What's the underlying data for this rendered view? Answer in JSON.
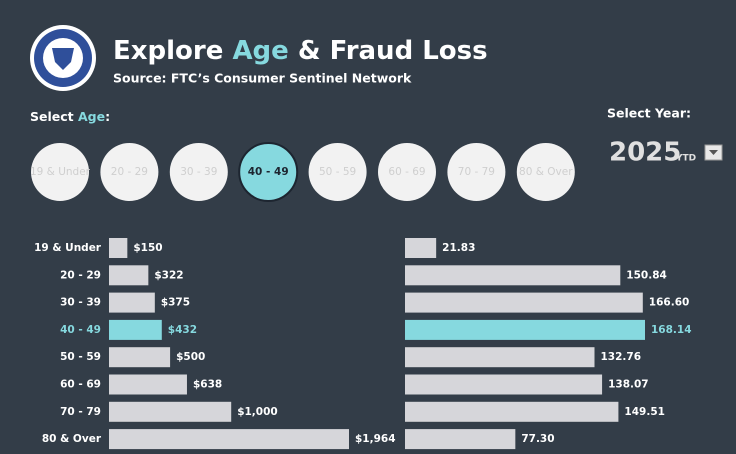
{
  "header": {
    "title_parts": [
      "Explore ",
      "Age",
      " & Fraud Loss"
    ],
    "subtitle": "Source: FTC’s Consumer Sentinel Network",
    "accent_color": "#86d9df"
  },
  "age_selector": {
    "label_parts": [
      "Select ",
      "Age",
      ":"
    ],
    "selected_index": 3
  },
  "year_selector": {
    "label": "Select Year:",
    "year": "2025",
    "suffix": "YTD"
  },
  "chart_data": [
    {
      "type": "bar",
      "orientation": "horizontal",
      "categories": [
        "19 & Under",
        "20 - 29",
        "30 - 39",
        "40 - 49",
        "50 - 59",
        "60 - 69",
        "70 - 79",
        "80 & Over"
      ],
      "values": [
        150,
        322,
        375,
        432,
        500,
        638,
        1000,
        1964
      ],
      "value_labels": [
        "$150",
        "$322",
        "$375",
        "$432",
        "$500",
        "$638",
        "$1,000",
        "$1,964"
      ],
      "color": "#d6d6da",
      "highlight_color": "#86d9df",
      "selected_index": 3
    },
    {
      "type": "bar",
      "orientation": "horizontal",
      "values": [
        21.83,
        150.84,
        166.6,
        168.14,
        132.76,
        138.07,
        149.51,
        77.3
      ],
      "value_labels": [
        "21.83",
        "150.84",
        "166.60",
        "168.14",
        "132.76",
        "138.07",
        "149.51",
        "77.30"
      ],
      "color": "#d6d6da",
      "highlight_color": "#86d9df",
      "selected_index": 3
    }
  ]
}
